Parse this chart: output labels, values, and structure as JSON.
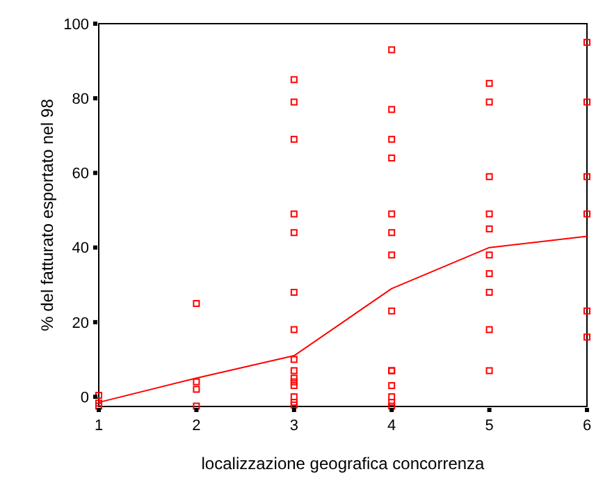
{
  "chart_data": {
    "type": "scatter",
    "xlabel": "localizzazione geografica concorrenza",
    "ylabel": "% del fatturato esportato nel 98",
    "xlim": [
      1,
      6
    ],
    "ylim": [
      -2.6,
      100
    ],
    "xticks": [
      1,
      2,
      3,
      4,
      5,
      6
    ],
    "yticks": [
      0,
      20,
      40,
      60,
      80,
      100
    ],
    "grid": false,
    "marker": "square",
    "series": [
      {
        "color": "#ff0000",
        "x": [
          1,
          1,
          1,
          2,
          2,
          2,
          2,
          3,
          3,
          3,
          3,
          3,
          3,
          3,
          3,
          3,
          3,
          3,
          3,
          3,
          3,
          3,
          4,
          4,
          4,
          4,
          4,
          4,
          4,
          4,
          4,
          4,
          4,
          4,
          4,
          4,
          5,
          5,
          5,
          5,
          5,
          5,
          5,
          5,
          5,
          5,
          6,
          6,
          6,
          6,
          6,
          6
        ],
        "values": [
          0.4,
          -1.7,
          -2.5,
          25,
          4,
          2,
          -2.5,
          85,
          79,
          69,
          49,
          44,
          28,
          18,
          10,
          7,
          5,
          4,
          3,
          0,
          -1.5,
          -2.2,
          93,
          77,
          69,
          64,
          49,
          44,
          38,
          23,
          7,
          7,
          3,
          0,
          -1.5,
          -2.5,
          84,
          79,
          59,
          49,
          45,
          38,
          33,
          28,
          18,
          7,
          95,
          79,
          59,
          49,
          23,
          16
        ]
      },
      {
        "type": "line",
        "color": "#ff0000",
        "marker": "none",
        "x": [
          1,
          2,
          3,
          4,
          5,
          6
        ],
        "values": [
          -1.5,
          5,
          11,
          29,
          40,
          43
        ]
      }
    ]
  }
}
